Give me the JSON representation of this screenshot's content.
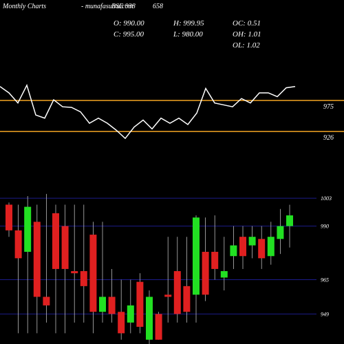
{
  "header": {
    "title": "Monthly Charts",
    "site": "- munafasutra.com",
    "symbol": "BSE 938",
    "code": "658",
    "stats": [
      {
        "label": "O:",
        "value": "990.00"
      },
      {
        "label": "H:",
        "value": "999.95"
      },
      {
        "label": "OC:",
        "value": "0.51"
      },
      {
        "label": "C:",
        "value": "995.00"
      },
      {
        "label": "L:",
        "value": "980.00"
      },
      {
        "label": "OH:",
        "value": "1.01"
      },
      {
        "label": "OL:",
        "value": "1.02"
      }
    ]
  },
  "chart_data": [
    {
      "type": "line",
      "color": "#ffffff",
      "tick_color": "#f5a623",
      "ylim": [
        900,
        1025
      ],
      "yticks": [
        975,
        926
      ],
      "values": [
        997,
        987,
        971,
        999,
        952,
        947,
        976,
        965,
        964,
        957,
        939,
        947,
        939,
        928,
        915,
        933,
        944,
        930,
        947,
        939,
        947,
        937,
        955,
        994,
        971,
        968,
        965,
        978,
        971,
        987,
        987,
        981,
        995,
        997
      ]
    },
    {
      "type": "candlestick",
      "up_color": "#22e022",
      "down_color": "#e02020",
      "grid_color": "#1c1c8a",
      "ylim": [
        935,
        1004
      ],
      "yticks": [
        1003,
        990,
        965,
        949
      ],
      "open": [
        1000,
        988,
        978,
        992,
        957,
        996,
        990,
        969,
        969,
        986,
        950,
        957,
        950,
        945,
        964,
        937,
        949,
        958,
        969,
        962,
        958,
        978,
        978,
        966,
        976,
        985,
        981,
        984,
        976,
        984,
        990
      ],
      "high": [
        1001,
        1000,
        1004,
        1000,
        1005,
        1000,
        1000,
        1000,
        1000,
        992,
        992,
        970,
        965,
        965,
        968,
        960,
        950,
        985,
        985,
        985,
        995,
        994,
        995,
        985,
        990,
        990,
        990,
        990,
        992,
        998,
        999.95
      ],
      "low": [
        985,
        940,
        940,
        940,
        945,
        940,
        940,
        945,
        945,
        940,
        945,
        945,
        937,
        940,
        940,
        935,
        937,
        945,
        945,
        945,
        945,
        955,
        965,
        960,
        970,
        970,
        975,
        970,
        972,
        977,
        980
      ],
      "close": [
        988,
        975,
        999,
        957,
        953,
        970,
        970,
        968,
        962,
        950,
        957,
        949,
        940,
        953,
        943,
        957,
        937,
        957,
        949,
        950,
        994,
        958,
        970,
        969,
        981,
        976,
        985,
        975,
        985,
        990,
        995
      ]
    }
  ]
}
